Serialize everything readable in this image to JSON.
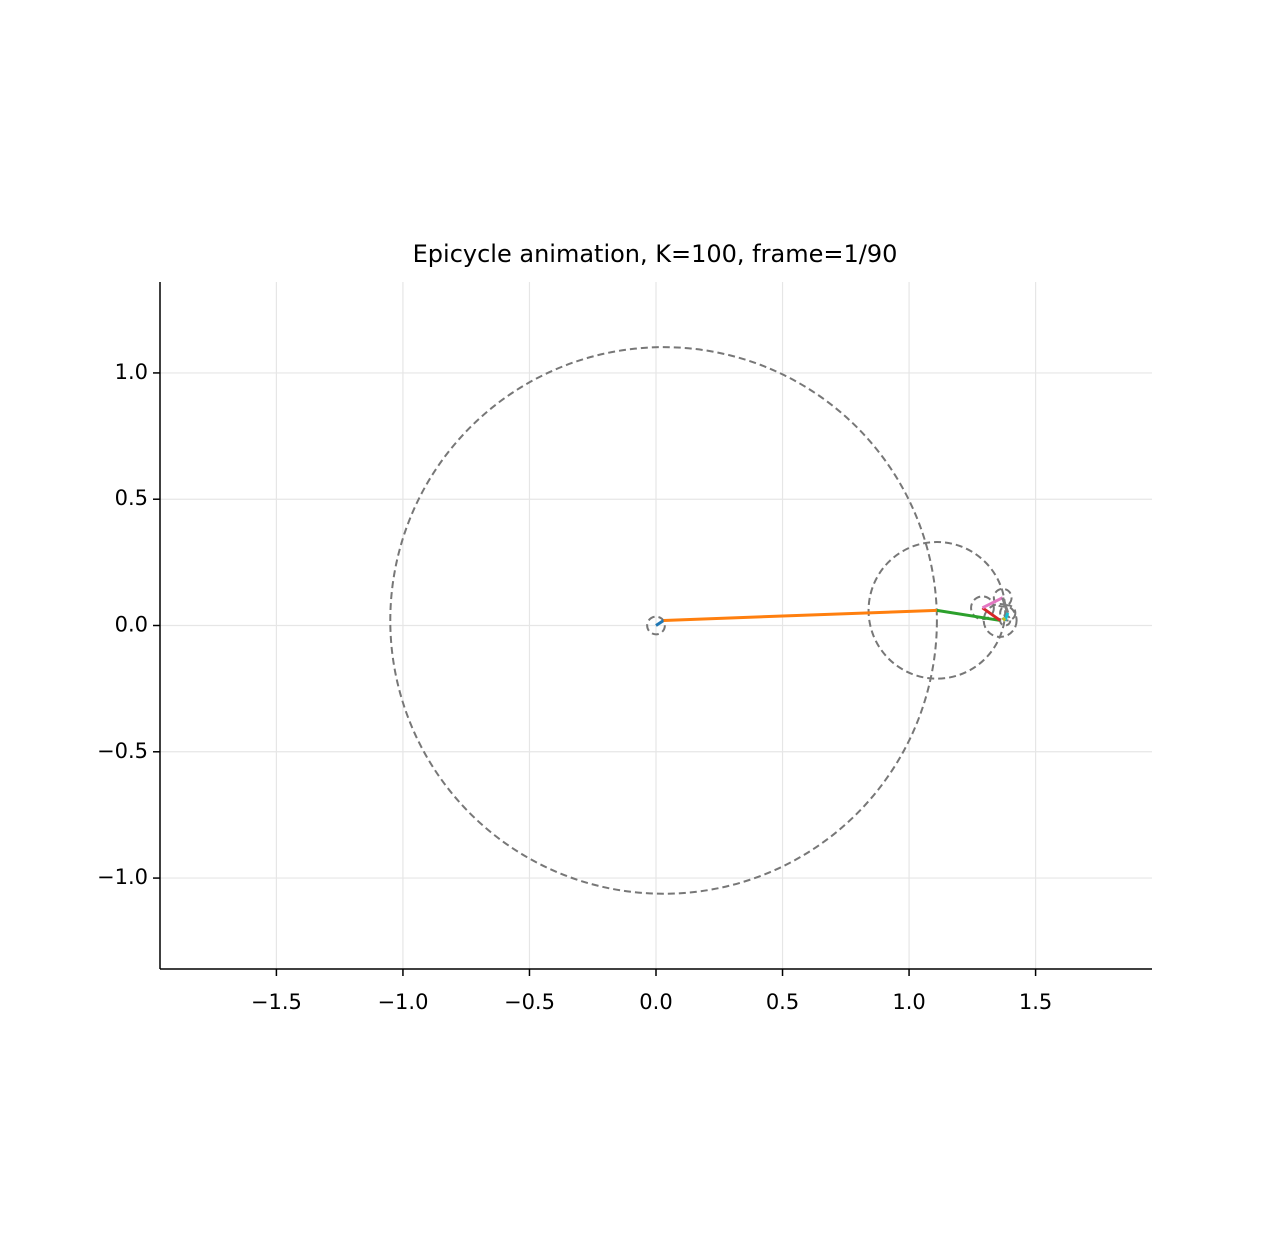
{
  "chart_data": {
    "type": "epicycle",
    "title": "Epicycle animation, K=100, frame=1/90",
    "x": [
      0,
      0.03,
      1.11,
      1.36,
      1.29,
      1.37,
      1.39,
      1.38,
      1.37
    ],
    "y": [
      0,
      0.02,
      0.06,
      0.02,
      0.07,
      0.11,
      0.05,
      0.02,
      0.03
    ],
    "radii": [
      0.035,
      1.08,
      0.27,
      0.065,
      0.045,
      0.035,
      0.03,
      0.02
    ],
    "colors": [
      "#1f77b4",
      "#ff7f0e",
      "#2ca02c",
      "#d62728",
      "#e377c2",
      "#7f7f7f",
      "#17becf",
      "#bcbd22"
    ],
    "xlim": [
      -1.96,
      1.96
    ],
    "ylim": [
      -1.36,
      1.36
    ],
    "xticks": [
      {
        "value": -1.5,
        "label": "−1.5"
      },
      {
        "value": -1.0,
        "label": "−1.0"
      },
      {
        "value": -0.5,
        "label": "−0.5"
      },
      {
        "value": 0.0,
        "label": "0.0"
      },
      {
        "value": 0.5,
        "label": "0.5"
      },
      {
        "value": 1.0,
        "label": "1.0"
      },
      {
        "value": 1.5,
        "label": "1.5"
      }
    ],
    "yticks": [
      {
        "value": -1.0,
        "label": "−1.0"
      },
      {
        "value": -0.5,
        "label": "−0.5"
      },
      {
        "value": 0.0,
        "label": "0.0"
      },
      {
        "value": 0.5,
        "label": "0.5"
      },
      {
        "value": 1.0,
        "label": "1.0"
      }
    ],
    "grid": true
  }
}
